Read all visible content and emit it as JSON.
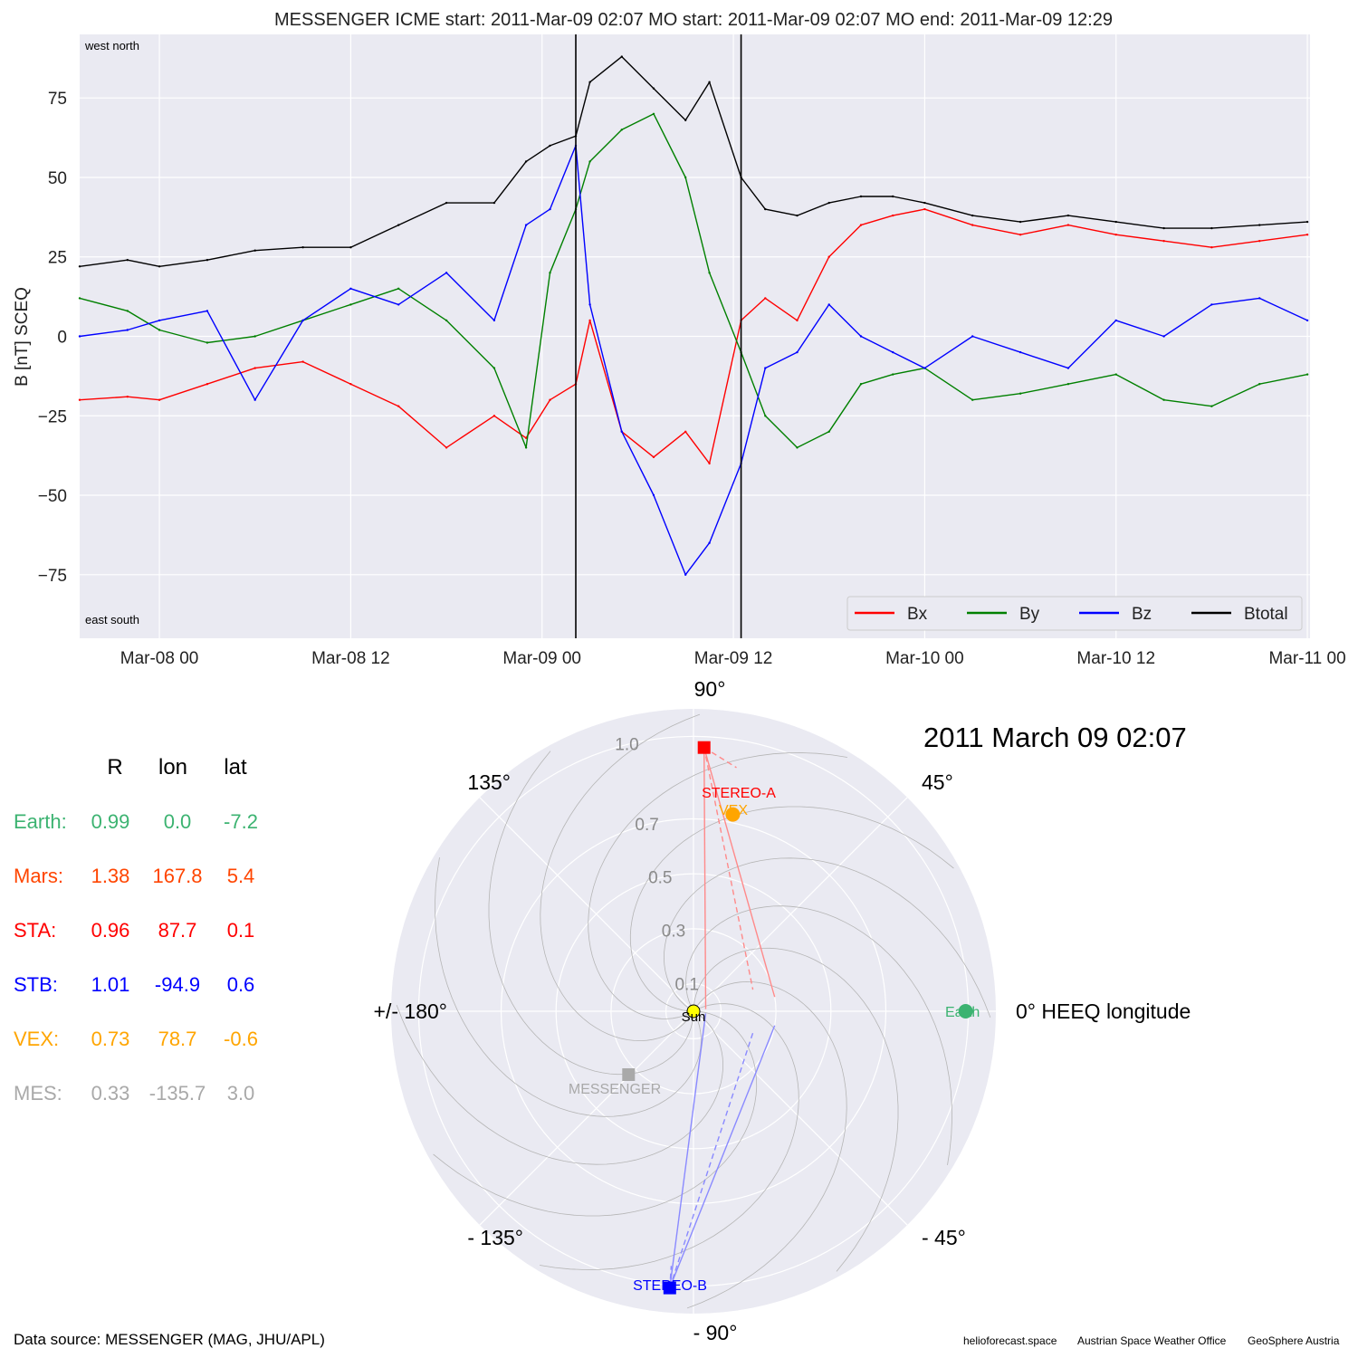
{
  "top": {
    "title": "MESSENGER    ICME start: 2011-Mar-09 02:07   MO start: 2011-Mar-09 02:07   MO end: 2011-Mar-09 12:29",
    "corner_labels": {
      "top_left": "west    north",
      "bottom_left": "east    south"
    },
    "colors": {
      "Bx": "#ff0000",
      "By": "#008000",
      "Bz": "#0000ff",
      "Btotal": "#000000",
      "background": "#eaeaf2"
    }
  },
  "bottom": {
    "date_title": "2011 March 09  02:07",
    "angle_labels": [
      "90°",
      "45°",
      "0° HEEQ longitude",
      "- 45°",
      "- 90°",
      "- 135°",
      "+/- 180°",
      "135°"
    ],
    "radial_labels": [
      "0.1",
      "0.3",
      "0.5",
      "0.7",
      "1.0"
    ],
    "body_labels": {
      "sun": "Sun",
      "earth": "Earth",
      "vex": "VEX",
      "stereo_a": "STEREO-A",
      "stereo_b": "STEREO-B",
      "messenger": "MESSENGER"
    },
    "table": {
      "headers": [
        "R",
        "lon",
        "lat"
      ],
      "rows": [
        {
          "name": "Earth:",
          "r": "0.99",
          "lon": "0.0",
          "lat": "-7.2",
          "color": "#3cb371"
        },
        {
          "name": "Mars:",
          "r": "1.38",
          "lon": "167.8",
          "lat": "5.4",
          "color": "#ff4500"
        },
        {
          "name": "STA:",
          "r": "0.96",
          "lon": "87.7",
          "lat": "0.1",
          "color": "#ff0000"
        },
        {
          "name": "STB:",
          "r": "1.01",
          "lon": "-94.9",
          "lat": "0.6",
          "color": "#0000ff"
        },
        {
          "name": "VEX:",
          "r": "0.73",
          "lon": "78.7",
          "lat": "-0.6",
          "color": "#ffa500"
        },
        {
          "name": "MES:",
          "r": "0.33",
          "lon": "-135.7",
          "lat": "3.0",
          "color": "#a9a9a9"
        }
      ]
    }
  },
  "footer": {
    "source": "Data source: MESSENGER (MAG, JHU/APL)",
    "credit1": "helioforecast.space",
    "credit2": "Austrian Space Weather Office",
    "credit3": "GeoSphere Austria"
  },
  "chart_data": [
    {
      "type": "line",
      "title": "MESSENGER    ICME start: 2011-Mar-09 02:07   MO start: 2011-Mar-09 02:07   MO end: 2011-Mar-09 12:29",
      "xlabel": "",
      "ylabel": "B [nT] SCEQ",
      "xlim": [
        "2011-03-07 19:00",
        "2011-03-11 00:10"
      ],
      "ylim": [
        -95,
        95
      ],
      "x_tick_labels": [
        "Mar-08 00",
        "Mar-08 12",
        "Mar-09 00",
        "Mar-09 12",
        "Mar-10 00",
        "Mar-10 12",
        "Mar-11 00"
      ],
      "x_tick_times": [
        "2011-03-08 00:00",
        "2011-03-08 12:00",
        "2011-03-09 00:00",
        "2011-03-09 12:00",
        "2011-03-10 00:00",
        "2011-03-10 12:00",
        "2011-03-11 00:00"
      ],
      "y_ticks": [
        -75,
        -50,
        -25,
        0,
        25,
        50,
        75
      ],
      "vertical_lines": [
        "2011-03-09 02:07",
        "2011-03-09 12:29"
      ],
      "legend": {
        "placement": "lower-right",
        "entries": [
          "Bx",
          "By",
          "Bz",
          "Btotal"
        ]
      },
      "grid": true,
      "x": [
        "2011-03-07 19:00",
        "2011-03-07 22:00",
        "2011-03-08 00:00",
        "2011-03-08 03:00",
        "2011-03-08 06:00",
        "2011-03-08 09:00",
        "2011-03-08 12:00",
        "2011-03-08 15:00",
        "2011-03-08 18:00",
        "2011-03-08 21:00",
        "2011-03-08 23:00",
        "2011-03-09 00:30",
        "2011-03-09 02:07",
        "2011-03-09 03:00",
        "2011-03-09 05:00",
        "2011-03-09 07:00",
        "2011-03-09 09:00",
        "2011-03-09 10:30",
        "2011-03-09 12:29",
        "2011-03-09 14:00",
        "2011-03-09 16:00",
        "2011-03-09 18:00",
        "2011-03-09 20:00",
        "2011-03-09 22:00",
        "2011-03-10 00:00",
        "2011-03-10 03:00",
        "2011-03-10 06:00",
        "2011-03-10 09:00",
        "2011-03-10 12:00",
        "2011-03-10 15:00",
        "2011-03-10 18:00",
        "2011-03-10 21:00",
        "2011-03-11 00:00"
      ],
      "series": [
        {
          "name": "Bx",
          "values": [
            -20,
            -19,
            -20,
            -15,
            -10,
            -8,
            -15,
            -22,
            -35,
            -25,
            -32,
            -20,
            -15,
            5,
            -30,
            -38,
            -30,
            -40,
            5,
            12,
            5,
            25,
            35,
            38,
            40,
            35,
            32,
            35,
            32,
            30,
            28,
            30,
            32
          ]
        },
        {
          "name": "By",
          "values": [
            12,
            8,
            2,
            -2,
            0,
            5,
            10,
            15,
            5,
            -10,
            -35,
            20,
            40,
            55,
            65,
            70,
            50,
            20,
            -5,
            -25,
            -35,
            -30,
            -15,
            -12,
            -10,
            -20,
            -18,
            -15,
            -12,
            -20,
            -22,
            -15,
            -12
          ]
        },
        {
          "name": "Bz",
          "values": [
            0,
            2,
            5,
            8,
            -20,
            5,
            15,
            10,
            20,
            5,
            35,
            40,
            60,
            10,
            -30,
            -50,
            -75,
            -65,
            -40,
            -10,
            -5,
            10,
            0,
            -5,
            -10,
            0,
            -5,
            -10,
            5,
            0,
            10,
            12,
            5
          ]
        },
        {
          "name": "Btotal",
          "values": [
            22,
            24,
            22,
            24,
            27,
            28,
            28,
            35,
            42,
            42,
            55,
            60,
            63,
            80,
            88,
            78,
            68,
            80,
            50,
            40,
            38,
            42,
            44,
            44,
            42,
            38,
            36,
            38,
            36,
            34,
            34,
            35,
            36
          ]
        }
      ]
    },
    {
      "type": "scatter",
      "title": "2011 March 09  02:07",
      "projection": "polar",
      "rlim": [
        0,
        1.1
      ],
      "theta_zero": "right",
      "grid": true,
      "points": [
        {
          "name": "Sun",
          "r": 0.0,
          "lon": 0.0,
          "color": "#ffff00"
        },
        {
          "name": "Earth",
          "r": 0.99,
          "lon": 0.0,
          "color": "#3cb371"
        },
        {
          "name": "VEX",
          "r": 0.73,
          "lon": 78.7,
          "color": "#ffa500"
        },
        {
          "name": "STEREO-A",
          "r": 0.96,
          "lon": 87.7,
          "color": "#ff0000"
        },
        {
          "name": "STEREO-B",
          "r": 1.01,
          "lon": -94.9,
          "color": "#0000ff"
        },
        {
          "name": "MESSENGER",
          "r": 0.33,
          "lon": -135.7,
          "color": "#a9a9a9"
        }
      ]
    }
  ]
}
